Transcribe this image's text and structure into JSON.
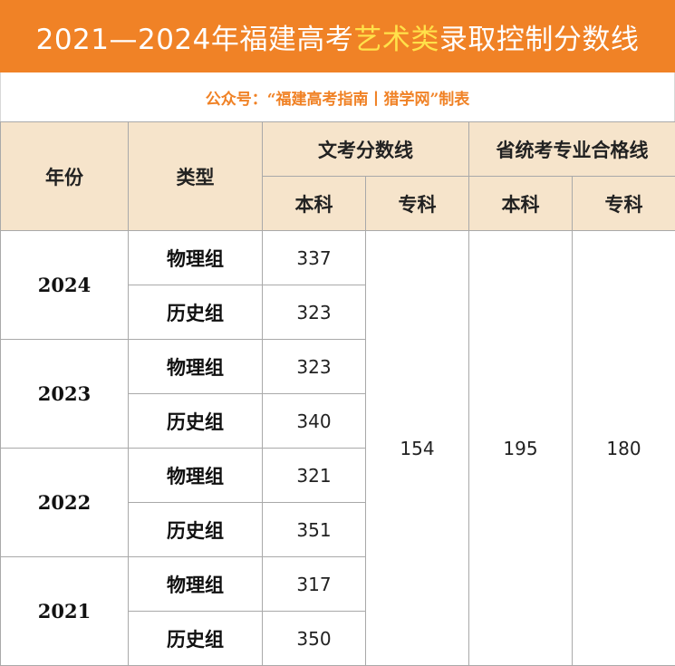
{
  "title": {
    "part1": "2021—2024年福建高考",
    "highlight": "艺术类",
    "part2": "录取控制分数线"
  },
  "subtitle": "公众号：“福建高考指南丨猎学网”制表",
  "headers": {
    "year": "年份",
    "type": "类型",
    "culture_group": "文考分数线",
    "major_group": "省统考专业合格线",
    "culture_benke": "本科",
    "culture_zhuanke": "专科",
    "major_benke": "本科",
    "major_zhuanke": "专科"
  },
  "rows": [
    {
      "year": "2024",
      "physics_label": "物理组",
      "physics_score": "337",
      "history_label": "历史组",
      "history_score": "323"
    },
    {
      "year": "2023",
      "physics_label": "物理组",
      "physics_score": "323",
      "history_label": "历史组",
      "history_score": "340"
    },
    {
      "year": "2022",
      "physics_label": "物理组",
      "physics_score": "321",
      "history_label": "历史组",
      "history_score": "351"
    },
    {
      "year": "2021",
      "physics_label": "物理组",
      "physics_score": "317",
      "history_label": "历史组",
      "history_score": "350"
    }
  ],
  "shared": {
    "culture_zhuanke": "154",
    "major_benke": "195",
    "major_zhuanke": "180"
  },
  "colors": {
    "banner": "#f08226",
    "highlight": "#ffe14a",
    "header_bg": "#f6e4cb",
    "subtitle": "#f08226"
  }
}
